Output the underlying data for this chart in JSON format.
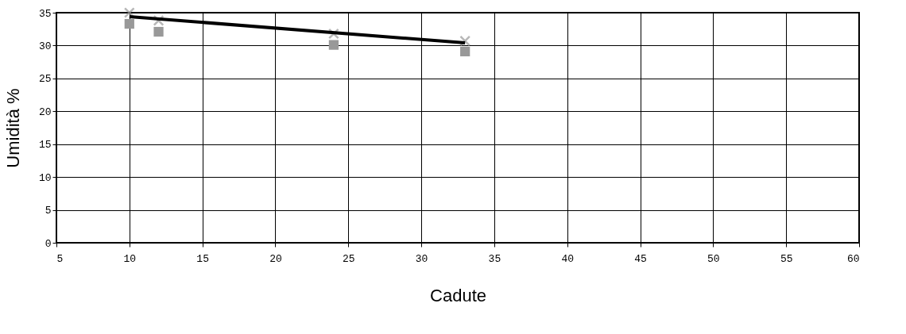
{
  "chart_data": {
    "type": "scatter",
    "xlabel": "Cadute",
    "ylabel": "Umidità %",
    "xlim": [
      5,
      60
    ],
    "xticks": [
      5,
      10,
      15,
      20,
      25,
      30,
      35,
      40,
      45,
      50,
      55,
      60
    ],
    "ylim": [
      0,
      35
    ],
    "yticks": [
      0,
      5,
      10,
      15,
      20,
      25,
      30,
      35
    ],
    "grid": true,
    "series": [
      {
        "marker": "square",
        "color": "#999999",
        "x": [
          10,
          12,
          24,
          33
        ],
        "values": [
          33.3,
          32.1,
          30.1,
          29.1
        ]
      },
      {
        "marker": "cross",
        "color": "#999999",
        "x": [
          10,
          12,
          24,
          33
        ],
        "values": [
          35.0,
          33.8,
          31.8,
          30.7
        ]
      },
      {
        "type": "line",
        "marker": "none",
        "color": "#000000",
        "x": [
          10,
          33
        ],
        "values": [
          34.4,
          30.4
        ]
      }
    ]
  }
}
